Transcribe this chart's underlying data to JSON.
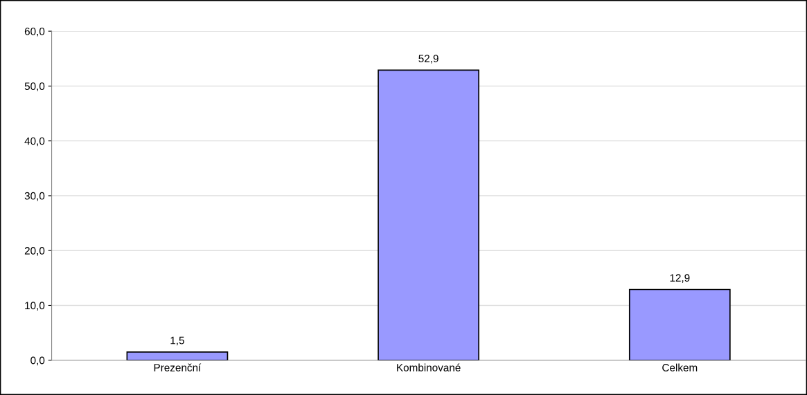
{
  "chart_data": {
    "type": "bar",
    "categories": [
      "Prezenční",
      "Kombinované",
      "Celkem"
    ],
    "values": [
      1.5,
      52.9,
      12.9
    ],
    "color": "#9999ff",
    "value_labels": [
      "1,5",
      "52,9",
      "12,9"
    ],
    "ylim": [
      0,
      60
    ],
    "yticks": [
      {
        "value": 0,
        "label": "0,0"
      },
      {
        "value": 10,
        "label": "10,0"
      },
      {
        "value": 20,
        "label": "20,0"
      },
      {
        "value": 30,
        "label": "30,0"
      },
      {
        "value": 40,
        "label": "40,0"
      },
      {
        "value": 50,
        "label": "50,0"
      },
      {
        "value": 60,
        "label": "60,0"
      }
    ],
    "grid": "y",
    "legend": false
  }
}
